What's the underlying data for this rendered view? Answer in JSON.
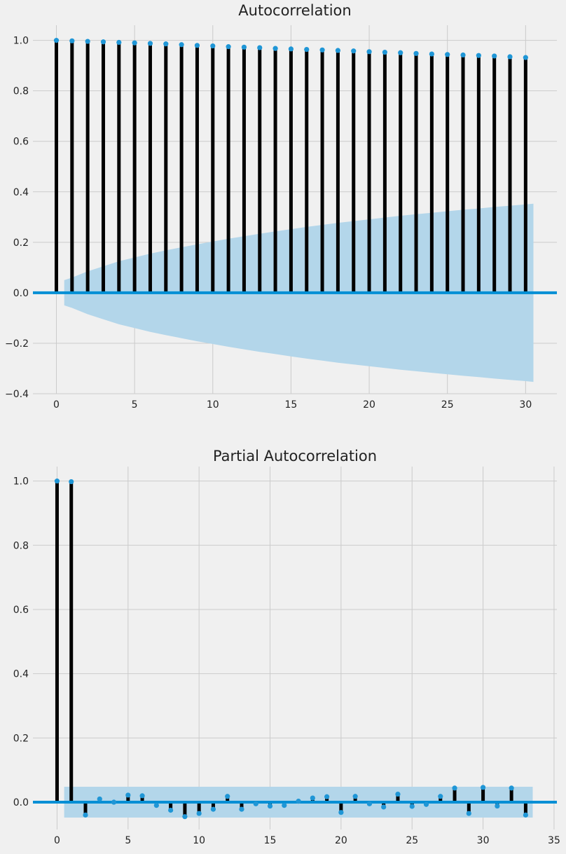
{
  "colors": {
    "background": "#f0f0f0",
    "grid": "#cbcbcb",
    "stem": "#000000",
    "marker": "#1f96d6",
    "zero_line": "#008fd5",
    "confidence_band": "#b3d6ea"
  },
  "chart_data": [
    {
      "type": "stem",
      "title": "Autocorrelation",
      "xlabel": "",
      "ylabel": "",
      "xlim": [
        -1.5,
        32
      ],
      "ylim": [
        -0.4,
        1.06
      ],
      "grid": true,
      "xticks": [
        0,
        5,
        10,
        15,
        20,
        25,
        30
      ],
      "yticks": [
        -0.4,
        -0.2,
        0.0,
        0.2,
        0.4,
        0.6,
        0.8,
        1.0
      ],
      "ytick_labels": [
        "−0.4",
        "−0.2",
        "0.0",
        "0.2",
        "0.4",
        "0.6",
        "0.8",
        "1.0"
      ],
      "lags": [
        0,
        1,
        2,
        3,
        4,
        5,
        6,
        7,
        8,
        9,
        10,
        11,
        12,
        13,
        14,
        15,
        16,
        17,
        18,
        19,
        20,
        21,
        22,
        23,
        24,
        25,
        26,
        27,
        28,
        29,
        30
      ],
      "values": [
        1.0,
        0.998,
        0.996,
        0.994,
        0.992,
        0.99,
        0.988,
        0.986,
        0.983,
        0.98,
        0.978,
        0.975,
        0.973,
        0.971,
        0.968,
        0.966,
        0.964,
        0.962,
        0.96,
        0.958,
        0.955,
        0.953,
        0.951,
        0.948,
        0.946,
        0.944,
        0.942,
        0.94,
        0.938,
        0.935,
        0.932
      ],
      "confidence_band": {
        "x": [
          0.5,
          1,
          2,
          3,
          4,
          5,
          6,
          7,
          8,
          9,
          10,
          11,
          12,
          13,
          14,
          15,
          16,
          17,
          18,
          19,
          20,
          21,
          22,
          23,
          24,
          25,
          26,
          27,
          28,
          29,
          30,
          30.5
        ],
        "upper": [
          0.05,
          0.06,
          0.085,
          0.105,
          0.125,
          0.14,
          0.155,
          0.168,
          0.18,
          0.192,
          0.203,
          0.214,
          0.224,
          0.234,
          0.243,
          0.252,
          0.261,
          0.269,
          0.277,
          0.284,
          0.291,
          0.298,
          0.305,
          0.311,
          0.317,
          0.323,
          0.329,
          0.334,
          0.34,
          0.345,
          0.35,
          0.353
        ],
        "lower": [
          -0.05,
          -0.06,
          -0.085,
          -0.105,
          -0.125,
          -0.14,
          -0.155,
          -0.168,
          -0.18,
          -0.192,
          -0.203,
          -0.214,
          -0.224,
          -0.234,
          -0.243,
          -0.252,
          -0.261,
          -0.269,
          -0.277,
          -0.284,
          -0.291,
          -0.298,
          -0.305,
          -0.311,
          -0.317,
          -0.323,
          -0.329,
          -0.334,
          -0.34,
          -0.345,
          -0.35,
          -0.353
        ]
      }
    },
    {
      "type": "stem",
      "title": "Partial Autocorrelation",
      "xlabel": "",
      "ylabel": "",
      "xlim": [
        -1.7,
        35.2
      ],
      "ylim": [
        -0.085,
        1.045
      ],
      "grid": true,
      "xticks": [
        0,
        5,
        10,
        15,
        20,
        25,
        30,
        35
      ],
      "yticks": [
        0.0,
        0.2,
        0.4,
        0.6,
        0.8,
        1.0
      ],
      "ytick_labels": [
        "0.0",
        "0.2",
        "0.4",
        "0.6",
        "0.8",
        "1.0"
      ],
      "lags": [
        0,
        1,
        2,
        3,
        4,
        5,
        6,
        7,
        8,
        9,
        10,
        11,
        12,
        13,
        14,
        15,
        16,
        17,
        18,
        19,
        20,
        21,
        22,
        23,
        24,
        25,
        26,
        27,
        28,
        29,
        30,
        31,
        32,
        33
      ],
      "values": [
        1.0,
        0.998,
        -0.04,
        0.01,
        0.0,
        0.022,
        0.02,
        -0.01,
        -0.025,
        -0.045,
        -0.035,
        -0.022,
        0.018,
        -0.022,
        -0.005,
        -0.012,
        -0.01,
        0.003,
        0.013,
        0.017,
        -0.032,
        0.018,
        -0.005,
        -0.015,
        0.025,
        -0.013,
        -0.007,
        0.018,
        0.044,
        -0.035,
        0.046,
        -0.012,
        0.044,
        -0.04
      ],
      "confidence_band": {
        "x": [
          0.5,
          33.5
        ],
        "upper": [
          0.048,
          0.048
        ],
        "lower": [
          -0.048,
          -0.048
        ]
      }
    }
  ]
}
